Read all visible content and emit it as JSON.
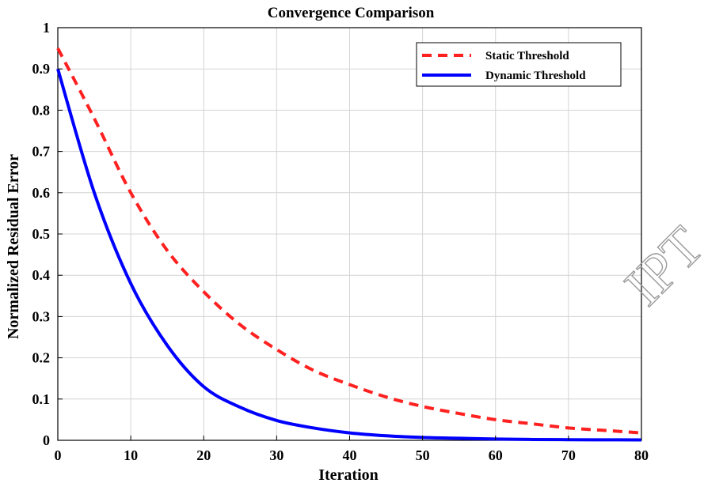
{
  "chart_data": {
    "type": "line",
    "title": "Convergence Comparison",
    "xlabel": "Iteration",
    "ylabel": "Normalized Residual Error",
    "xlim": [
      0,
      80
    ],
    "ylim": [
      0,
      1
    ],
    "xticks": [
      0,
      10,
      20,
      30,
      40,
      50,
      60,
      70,
      80
    ],
    "yticks": [
      0,
      0.1,
      0.2,
      0.3,
      0.4,
      0.5,
      0.6,
      0.7,
      0.8,
      0.9,
      1
    ],
    "xtick_labels": [
      "0",
      "10",
      "20",
      "30",
      "40",
      "50",
      "60",
      "70",
      "80"
    ],
    "ytick_labels": [
      "0",
      "0.1",
      "0.2",
      "0.3",
      "0.4",
      "0.5",
      "0.6",
      "0.7",
      "0.8",
      "0.9",
      "1"
    ],
    "grid": true,
    "legend_position": "top-right",
    "series": [
      {
        "name": "Static Threshold",
        "color": "#ff2020",
        "style": "dashed",
        "x": [
          0,
          5,
          10,
          15,
          20,
          25,
          30,
          35,
          40,
          45,
          50,
          55,
          60,
          65,
          70,
          75,
          80
        ],
        "y": [
          0.95,
          0.78,
          0.6,
          0.46,
          0.36,
          0.28,
          0.22,
          0.17,
          0.135,
          0.105,
          0.082,
          0.065,
          0.05,
          0.04,
          0.03,
          0.024,
          0.018
        ]
      },
      {
        "name": "Dynamic Threshold",
        "color": "#0000ff",
        "style": "solid",
        "x": [
          0,
          5,
          10,
          15,
          20,
          25,
          30,
          35,
          40,
          45,
          50,
          55,
          60,
          65,
          70,
          75,
          80
        ],
        "y": [
          0.9,
          0.6,
          0.38,
          0.23,
          0.13,
          0.08,
          0.048,
          0.03,
          0.018,
          0.011,
          0.007,
          0.005,
          0.003,
          0.002,
          0.0015,
          0.0012,
          0.001
        ]
      }
    ]
  },
  "watermark": {
    "text": "IPT",
    "color": "#9a9a9a"
  }
}
